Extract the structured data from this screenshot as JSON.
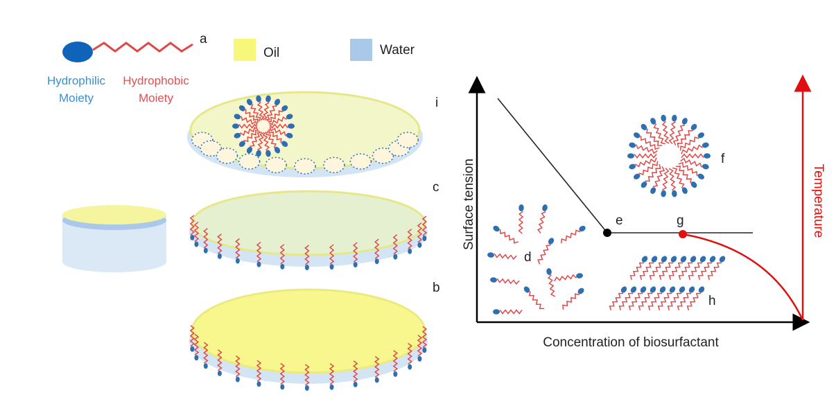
{
  "legend": {
    "label": "a",
    "hydrophilic": [
      "Hydrophilic",
      "Moiety"
    ],
    "hydrophobic": [
      "Hydrophobic",
      "Moiety"
    ],
    "oil": "Oil",
    "water": "Water"
  },
  "stages": [
    "i",
    "c",
    "b"
  ],
  "plot": {
    "y_label": "Surface tension",
    "x_label": "Concentration of biosurfactant",
    "y2_label": "Temperature",
    "points": [
      "d",
      "e",
      "f",
      "g",
      "h"
    ]
  }
}
